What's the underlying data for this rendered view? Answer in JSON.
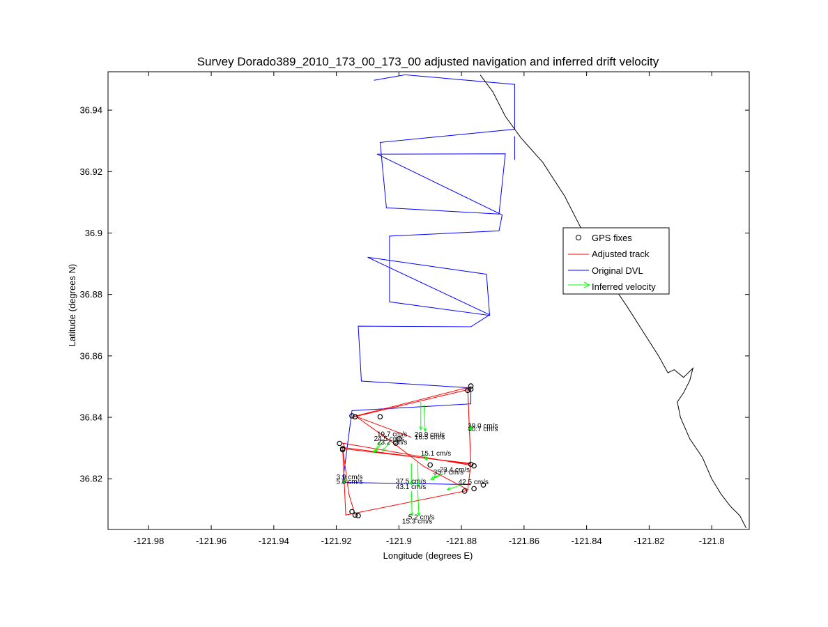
{
  "chart_data": {
    "type": "scatter",
    "title": "Survey Dorado389_2010_173_00_173_00 adjusted navigation and inferred drift velocity",
    "xlabel": "Longitude (degrees E)",
    "ylabel": "Latitude (degrees N)",
    "xlim": [
      -121.993,
      -121.788
    ],
    "ylim": [
      36.8035,
      36.9525
    ],
    "xticks": [
      -121.98,
      -121.96,
      -121.94,
      -121.92,
      -121.9,
      -121.88,
      -121.86,
      -121.84,
      -121.82,
      -121.8
    ],
    "xtick_labels": [
      "-121.98",
      "-121.96",
      "-121.94",
      "-121.92",
      "-121.9",
      "-121.88",
      "-121.86",
      "-121.84",
      "-121.82",
      "-121.8"
    ],
    "yticks": [
      36.82,
      36.84,
      36.86,
      36.88,
      36.9,
      36.92,
      36.94
    ],
    "ytick_labels": [
      "36.82",
      "36.84",
      "36.86",
      "36.88",
      "36.9",
      "36.92",
      "36.94"
    ],
    "grid": false,
    "legend_position": "right",
    "legend": [
      {
        "label": "GPS fixes",
        "marker": "circle",
        "color": "#000000"
      },
      {
        "label": "Adjusted track",
        "marker": "line",
        "color": "#ff0000"
      },
      {
        "label": "Original DVL",
        "marker": "line",
        "color": "#0000ff"
      },
      {
        "label": "Inferred velocity",
        "marker": "arrow",
        "color": "#00ff00"
      }
    ],
    "series": [
      {
        "legend_entry": "Original DVL",
        "color": "#0000ff",
        "points": [
          [
            -121.908,
            36.9497
          ],
          [
            -121.898,
            36.9515
          ],
          [
            -121.863,
            36.9484
          ],
          [
            -121.863,
            36.9338
          ],
          [
            -121.906,
            36.9295
          ],
          [
            -121.904,
            36.9082
          ],
          [
            -121.868,
            36.9062
          ],
          [
            -121.866,
            36.9258
          ],
          [
            -121.907,
            36.9257
          ],
          [
            -121.867,
            36.9059
          ],
          [
            -121.868,
            36.9007
          ],
          [
            -121.903,
            36.899
          ],
          [
            -121.903,
            36.8776
          ],
          [
            -121.871,
            36.8732
          ],
          [
            -121.872,
            36.8866
          ],
          [
            -121.91,
            36.8921
          ],
          [
            -121.871,
            36.8734
          ],
          [
            -121.877,
            36.8695
          ],
          [
            -121.913,
            36.8697
          ],
          [
            -121.912,
            36.8518
          ],
          [
            -121.877,
            36.8496
          ],
          [
            -121.877,
            36.8444
          ],
          [
            -121.915,
            36.8422
          ],
          [
            -121.918,
            36.8188
          ],
          [
            -121.877,
            36.8181
          ]
        ]
      },
      {
        "legend_entry": "",
        "color": "#0000ff",
        "points": [
          [
            -121.863,
            36.9315
          ],
          [
            -121.863,
            36.9238
          ]
        ]
      },
      {
        "legend_entry": "Adjusted track",
        "color": "#ff0000",
        "points": [
          [
            -121.914,
            36.8404
          ],
          [
            -121.878,
            36.8497
          ],
          [
            -121.877,
            36.8248
          ],
          [
            -121.918,
            36.8302
          ],
          [
            -121.917,
            36.8082
          ],
          [
            -121.878,
            36.8162
          ],
          [
            -121.877,
            36.825
          ],
          [
            -121.917,
            36.8297
          ],
          [
            -121.918,
            36.8316
          ],
          [
            -121.877,
            36.8244
          ],
          [
            -121.878,
            36.849
          ],
          [
            -121.915,
            36.84
          ]
        ]
      },
      {
        "legend_entry": "",
        "color": "#ff0000",
        "points": [
          [
            -121.914,
            36.8405
          ],
          [
            -121.902,
            36.8318
          ],
          [
            -121.892,
            36.824
          ],
          [
            -121.878,
            36.8165
          ]
        ]
      },
      {
        "legend_entry": "",
        "color": "#ff0000",
        "points": [
          [
            -121.918,
            36.8301
          ],
          [
            -121.916,
            36.815
          ],
          [
            -121.914,
            36.8082
          ]
        ]
      },
      {
        "legend_entry": "",
        "color": "#ff0000",
        "points": [
          [
            -121.914,
            36.8404
          ],
          [
            -121.896,
            36.8335
          ]
        ]
      },
      {
        "legend_entry": "",
        "color": "#000000",
        "points": [
          [
            -121.874,
            36.9515
          ],
          [
            -121.87,
            36.946
          ],
          [
            -121.866,
            36.938
          ],
          [
            -121.861,
            36.931
          ],
          [
            -121.854,
            36.923
          ],
          [
            -121.847,
            36.912
          ],
          [
            -121.842,
            36.902
          ],
          [
            -121.838,
            36.893
          ],
          [
            -121.833,
            36.885
          ],
          [
            -121.827,
            36.876
          ],
          [
            -121.822,
            36.868
          ],
          [
            -121.817,
            36.86
          ],
          [
            -121.814,
            36.8545
          ],
          [
            -121.812,
            36.8555
          ],
          [
            -121.809,
            36.853
          ],
          [
            -121.806,
            36.856
          ],
          [
            -121.807,
            36.852
          ],
          [
            -121.809,
            36.848
          ],
          [
            -121.811,
            36.845
          ],
          [
            -121.81,
            36.84
          ],
          [
            -121.807,
            36.833
          ],
          [
            -121.803,
            36.827
          ],
          [
            -121.8,
            36.82
          ],
          [
            -121.797,
            36.815
          ],
          [
            -121.794,
            36.811
          ],
          [
            -121.791,
            36.808
          ],
          [
            -121.79,
            36.806
          ],
          [
            -121.789,
            36.804
          ]
        ]
      }
    ],
    "gps_fixes": [
      [
        -121.877,
        36.8502
      ],
      [
        -121.878,
        36.8488
      ],
      [
        -121.877,
        36.8492
      ],
      [
        -121.914,
        36.8402
      ],
      [
        -121.915,
        36.8405
      ],
      [
        -121.906,
        36.8402
      ],
      [
        -121.9,
        36.833
      ],
      [
        -121.901,
        36.8316
      ],
      [
        -121.919,
        36.8315
      ],
      [
        -121.918,
        36.8295
      ],
      [
        -121.918,
        36.8298
      ],
      [
        -121.877,
        36.8247
      ],
      [
        -121.876,
        36.8242
      ],
      [
        -121.89,
        36.8245
      ],
      [
        -121.879,
        36.816
      ],
      [
        -121.876,
        36.8168
      ],
      [
        -121.873,
        36.818
      ],
      [
        -121.915,
        36.8093
      ],
      [
        -121.914,
        36.8082
      ],
      [
        -121.913,
        36.808
      ]
    ],
    "inferred_velocity": [
      {
        "x": -121.893,
        "y": 36.845,
        "u": 0.0,
        "v": -0.009,
        "label": "39.0 cm/s"
      },
      {
        "x": -121.892,
        "y": 36.844,
        "u": 0.0004,
        "v": -0.0085,
        "label": "40.7 cm/s"
      },
      {
        "x": -121.906,
        "y": 36.832,
        "u": -0.002,
        "v": -0.0035,
        "label": "19.7 cm/s"
      },
      {
        "x": -121.905,
        "y": 36.8322,
        "u": -0.0025,
        "v": -0.0032,
        "label": "24.5 cm/s"
      },
      {
        "x": -121.903,
        "y": 36.8318,
        "u": -0.0022,
        "v": -0.0028,
        "label": "23.2 cm/s"
      },
      {
        "x": -121.892,
        "y": 36.828,
        "u": 0.001,
        "v": -0.002,
        "label": "20.9 cm/s"
      },
      {
        "x": -121.886,
        "y": 36.8215,
        "u": -0.003,
        "v": -0.001,
        "label": "16.5 cm/s"
      },
      {
        "x": -121.887,
        "y": 36.821,
        "u": -0.0028,
        "v": -0.0012,
        "label": "15.1 cm/s"
      },
      {
        "x": -121.88,
        "y": 36.818,
        "u": -0.0045,
        "v": -0.0015,
        "label": "23.4 cm/s"
      },
      {
        "x": -121.896,
        "y": 36.825,
        "u": 0.0,
        "v": -0.007,
        "label": "35.7 cm/s"
      },
      {
        "x": -121.894,
        "y": 36.8255,
        "u": 0.0002,
        "v": -0.008,
        "label": "42.5 cm/s"
      },
      {
        "x": -121.896,
        "y": 36.816,
        "u": 0.0002,
        "v": -0.008,
        "label": "37.5 cm/s"
      },
      {
        "x": -121.894,
        "y": 36.8165,
        "u": 0.0004,
        "v": -0.0085,
        "label": "43.1 cm/s"
      },
      {
        "x": -121.918,
        "y": 36.8195,
        "u": 0.0012,
        "v": 0.0,
        "label": "5.2 cm/s"
      },
      {
        "x": -121.918,
        "y": 36.819,
        "u": 0.001,
        "v": -0.0003,
        "label": "15.3 cm/s"
      },
      {
        "x": -121.877,
        "y": 36.8365,
        "u": 0.0002,
        "v": 0.0006,
        "label": "3.9 cm/s"
      },
      {
        "x": -121.877,
        "y": 36.8362,
        "u": 0.0002,
        "v": -0.0004,
        "label": "5.5 cm/s"
      }
    ],
    "velocity_label_positions": [
      [
        -121.878,
        36.8365
      ],
      [
        -121.878,
        36.8355
      ],
      [
        -121.907,
        36.8338
      ],
      [
        -121.908,
        36.8323
      ],
      [
        -121.907,
        36.8312
      ],
      [
        -121.895,
        36.8337
      ],
      [
        -121.895,
        36.8329
      ],
      [
        -121.893,
        36.8275
      ],
      [
        -121.887,
        36.8222
      ],
      [
        -121.889,
        36.8214
      ],
      [
        -121.881,
        36.8182
      ],
      [
        -121.901,
        36.8185
      ],
      [
        -121.901,
        36.8167
      ],
      [
        -121.897,
        36.8068
      ],
      [
        -121.899,
        36.8054
      ],
      [
        -121.92,
        36.8198
      ],
      [
        -121.92,
        36.8183
      ]
    ]
  }
}
